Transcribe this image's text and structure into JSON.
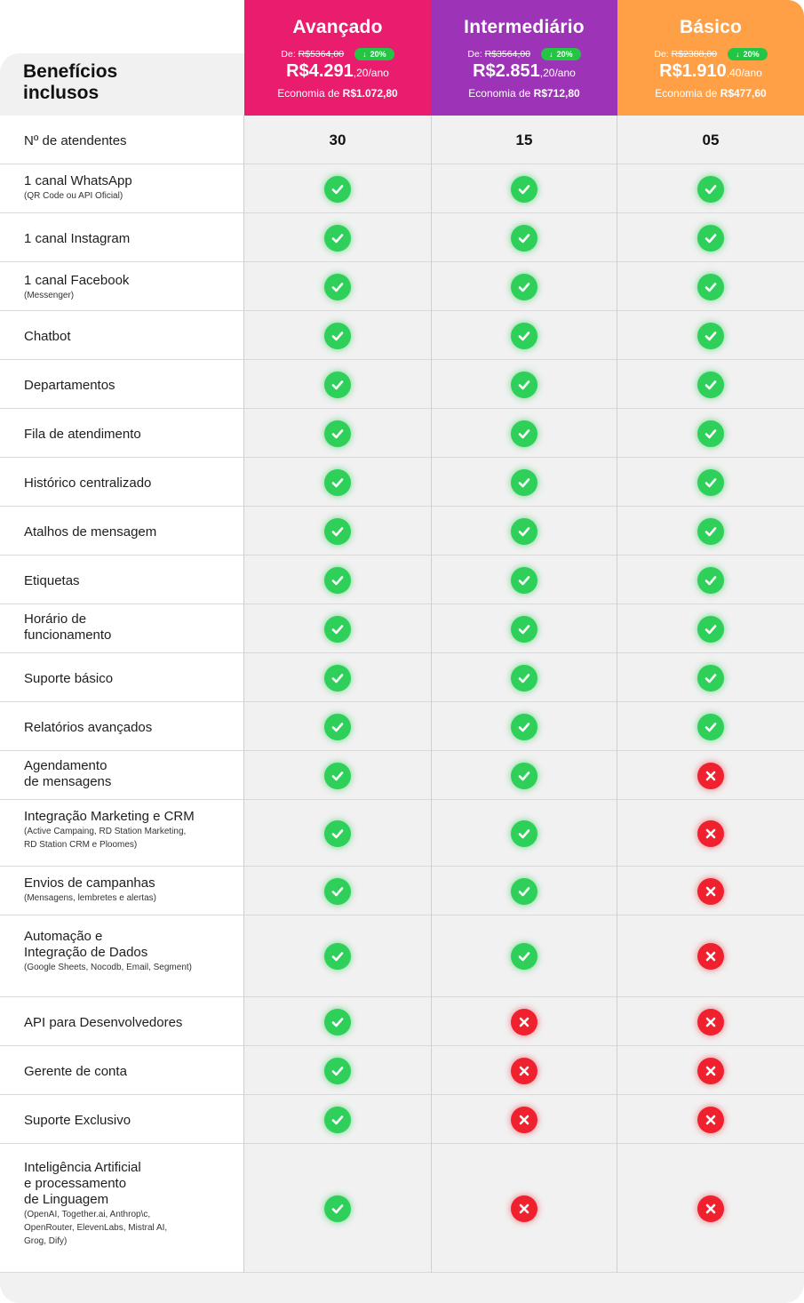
{
  "header": {
    "title": "Benefícios inclusos",
    "plans": [
      {
        "name": "Avançado",
        "from_label": "De:",
        "old_price": "R$5364,00",
        "badge_arrow": "↓",
        "badge": "20%",
        "price_main": "R$4.291",
        "price_cents": ",20/ano",
        "savings_label": "Economia de",
        "savings_value": "R$1.072,80",
        "color": "#ea1c6d"
      },
      {
        "name": "Intermediário",
        "from_label": "De:",
        "old_price": "R$3564,00",
        "badge_arrow": "↓",
        "badge": "20%",
        "price_main": "R$2.851",
        "price_cents": ",20/ano",
        "savings_label": "Economia de",
        "savings_value": "R$712,80",
        "color": "#9d33b7"
      },
      {
        "name": "Básico",
        "from_label": "De:",
        "old_price": "R$2388,00",
        "badge_arrow": "↓",
        "badge": "20%",
        "price_main": "R$1.910",
        "price_cents": ",40/ano",
        "savings_label": "Economia de",
        "savings_value": "R$477,60",
        "color": "#ffa046"
      }
    ]
  },
  "rows": [
    {
      "label": "Nº de atendentes",
      "sub": "",
      "values": [
        "30",
        "15",
        "05"
      ]
    },
    {
      "label": "1 canal WhatsApp",
      "sub": "(QR Code ou API Oficial)",
      "values": [
        "yes",
        "yes",
        "yes"
      ]
    },
    {
      "label": "1 canal Instagram",
      "sub": "",
      "values": [
        "yes",
        "yes",
        "yes"
      ]
    },
    {
      "label": "1 canal Facebook",
      "sub": "(Messenger)",
      "values": [
        "yes",
        "yes",
        "yes"
      ]
    },
    {
      "label": "Chatbot",
      "sub": "",
      "values": [
        "yes",
        "yes",
        "yes"
      ]
    },
    {
      "label": "Departamentos",
      "sub": "",
      "values": [
        "yes",
        "yes",
        "yes"
      ]
    },
    {
      "label": "Fila de atendimento",
      "sub": "",
      "values": [
        "yes",
        "yes",
        "yes"
      ]
    },
    {
      "label": "Histórico centralizado",
      "sub": "",
      "values": [
        "yes",
        "yes",
        "yes"
      ]
    },
    {
      "label": "Atalhos de mensagem",
      "sub": "",
      "values": [
        "yes",
        "yes",
        "yes"
      ]
    },
    {
      "label": "Etiquetas",
      "sub": "",
      "values": [
        "yes",
        "yes",
        "yes"
      ]
    },
    {
      "label": "Horário de\nfuncionamento",
      "sub": "",
      "values": [
        "yes",
        "yes",
        "yes"
      ]
    },
    {
      "label": "Suporte básico",
      "sub": "",
      "values": [
        "yes",
        "yes",
        "yes"
      ]
    },
    {
      "label": "Relatórios avançados",
      "sub": "",
      "values": [
        "yes",
        "yes",
        "yes"
      ]
    },
    {
      "label": "Agendamento\nde mensagens",
      "sub": "",
      "values": [
        "yes",
        "yes",
        "no"
      ]
    },
    {
      "label": "Integração Marketing e CRM",
      "sub": "(Active Campaing, RD Station Marketing,\nRD Station CRM e Ploomes)",
      "values": [
        "yes",
        "yes",
        "no"
      ]
    },
    {
      "label": "Envios de campanhas",
      "sub": "(Mensagens, lembretes e alertas)",
      "values": [
        "yes",
        "yes",
        "no"
      ]
    },
    {
      "label": "Automação e\nIntegração de Dados",
      "sub": "(Google Sheets, Nocodb, Email, Segment)",
      "values": [
        "yes",
        "yes",
        "no"
      ]
    },
    {
      "label": "API para Desenvolvedores",
      "sub": "",
      "values": [
        "yes",
        "no",
        "no"
      ]
    },
    {
      "label": "Gerente de conta",
      "sub": "",
      "values": [
        "yes",
        "no",
        "no"
      ]
    },
    {
      "label": "Suporte Exclusivo",
      "sub": "",
      "values": [
        "yes",
        "no",
        "no"
      ]
    },
    {
      "label": "Inteligência  Artificial\ne processamento\nde Linguagem",
      "sub": "(OpenAI, Together.ai, Anthrop\\c,\nOpenRouter, ElevenLabs, Mistral AI,\nGrog, Dify)",
      "values": [
        "yes",
        "no",
        "no"
      ]
    }
  ],
  "icons": {
    "yes": "check-circle-icon",
    "no": "x-circle-icon"
  },
  "colors": {
    "yes": "#2ed05a",
    "no": "#f0212e",
    "badge": "#24c544"
  }
}
